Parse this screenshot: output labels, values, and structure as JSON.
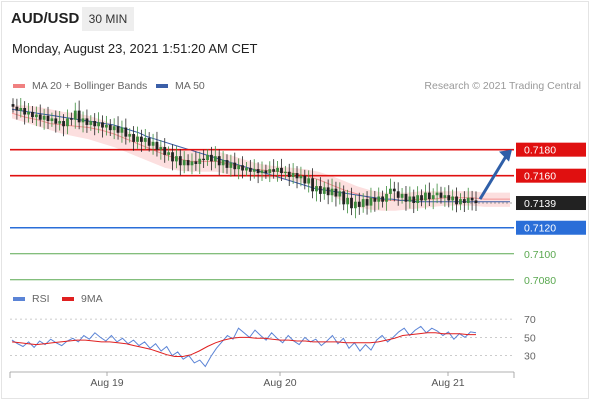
{
  "header": {
    "symbol": "AUD/USD",
    "timeframe": "30 MIN",
    "datetime": "Monday, August 23, 2021 1:51:20 AM CET"
  },
  "legend": {
    "bollinger_label": "MA 20 + Bollinger Bands",
    "ma50_label": "MA 50",
    "credit": "Research © 2021 Trading Central",
    "rsi_label": "RSI",
    "ma9_label": "9MA"
  },
  "colors": {
    "bollinger": "#f08080",
    "band_fill": "#fcdcdc",
    "ma50": "#3b5fa8",
    "resistance": "#e01010",
    "pivot": "#2a6ed8",
    "support": "#5aa850",
    "rsi": "#5b84d6",
    "ma9": "#e02020",
    "candle_up": "#3c8c3c",
    "candle_down": "#222222",
    "arrow": "#2f5fa8",
    "last_price": "#222222"
  },
  "chart_data": {
    "type": "candlestick",
    "price_axis": {
      "ylim": [
        0.7076,
        0.7222
      ]
    },
    "x_labels": [
      "Aug 19",
      "Aug 20",
      "Aug 21"
    ],
    "close_series": [
      0.7213,
      0.721,
      0.7212,
      0.7207,
      0.7209,
      0.7205,
      0.7207,
      0.7203,
      0.7206,
      0.7202,
      0.7204,
      0.72,
      0.7202,
      0.7198,
      0.7204,
      0.7203,
      0.721,
      0.7201,
      0.7204,
      0.7199,
      0.7202,
      0.7198,
      0.7201,
      0.7197,
      0.7199,
      0.7195,
      0.7198,
      0.7193,
      0.7197,
      0.719,
      0.7192,
      0.7186,
      0.719,
      0.7186,
      0.7189,
      0.7183,
      0.7186,
      0.718,
      0.7182,
      0.7176,
      0.7178,
      0.7171,
      0.7175,
      0.7168,
      0.7172,
      0.7168,
      0.7171,
      0.7169,
      0.7173,
      0.7172,
      0.7176,
      0.7171,
      0.7175,
      0.7168,
      0.7172,
      0.7166,
      0.717,
      0.7165,
      0.7168,
      0.7164,
      0.7166,
      0.7163,
      0.7165,
      0.7162,
      0.7164,
      0.7162,
      0.7165,
      0.7163,
      0.7166,
      0.7162,
      0.7163,
      0.7159,
      0.7162,
      0.7158,
      0.716,
      0.7154,
      0.7158,
      0.7148,
      0.7152,
      0.7146,
      0.7151,
      0.7145,
      0.715,
      0.7144,
      0.7148,
      0.7138,
      0.7143,
      0.7135,
      0.714,
      0.7136,
      0.7142,
      0.7137,
      0.7143,
      0.714,
      0.7144,
      0.714,
      0.7146,
      0.715,
      0.7148,
      0.7143,
      0.7146,
      0.714,
      0.7144,
      0.7139,
      0.7145,
      0.7141,
      0.7147,
      0.7142,
      0.7145,
      0.7147,
      0.7143,
      0.7145,
      0.7141,
      0.7144,
      0.7138,
      0.7142,
      0.7139,
      0.7143,
      0.7141,
      0.7139
    ],
    "ma50_series": [
      0.7211,
      0.721,
      0.7209,
      0.7208,
      0.7207,
      0.7206,
      0.7205,
      0.7204,
      0.7203,
      0.7202,
      0.7201,
      0.72,
      0.7199,
      0.7197,
      0.7195,
      0.7193,
      0.719,
      0.7188,
      0.7186,
      0.7184,
      0.7182,
      0.718,
      0.7178,
      0.7176,
      0.7174,
      0.7172,
      0.717,
      0.7168,
      0.7166,
      0.7164,
      0.7162,
      0.716,
      0.7158,
      0.7156,
      0.7154,
      0.7152,
      0.715,
      0.7149,
      0.7148,
      0.7147,
      0.7146,
      0.7145,
      0.7144,
      0.7143,
      0.7142,
      0.7142,
      0.7141,
      0.7141,
      0.714,
      0.714,
      0.714,
      0.714,
      0.714,
      0.714,
      0.714,
      0.714,
      0.714,
      0.714,
      0.714,
      0.714
    ],
    "bollinger": {
      "mid": [
        0.7208,
        0.7205,
        0.7203,
        0.72,
        0.7199,
        0.7198,
        0.7197,
        0.7195,
        0.7192,
        0.7188,
        0.7184,
        0.718,
        0.7176,
        0.7173,
        0.7171,
        0.7171,
        0.7171,
        0.7169,
        0.7167,
        0.7165,
        0.7164,
        0.7163,
        0.7162,
        0.716,
        0.7157,
        0.7153,
        0.7149,
        0.7146,
        0.7143,
        0.7141,
        0.7141,
        0.7141,
        0.7142,
        0.7142,
        0.7143,
        0.7143,
        0.7143,
        0.7142,
        0.7142,
        0.7142
      ],
      "upper": [
        0.7214,
        0.7214,
        0.7213,
        0.7211,
        0.7209,
        0.7208,
        0.7206,
        0.7203,
        0.7199,
        0.7194,
        0.719,
        0.7186,
        0.7182,
        0.718,
        0.7179,
        0.7179,
        0.7179,
        0.7176,
        0.7173,
        0.717,
        0.7168,
        0.7167,
        0.7166,
        0.7165,
        0.7163,
        0.716,
        0.7156,
        0.7152,
        0.7149,
        0.7147,
        0.7147,
        0.7147,
        0.7148,
        0.7148,
        0.7148,
        0.7148,
        0.7148,
        0.7147,
        0.7147,
        0.7147
      ],
      "lower": [
        0.7204,
        0.7201,
        0.7198,
        0.7195,
        0.7192,
        0.719,
        0.7188,
        0.7185,
        0.7182,
        0.7178,
        0.7174,
        0.717,
        0.7166,
        0.7164,
        0.7163,
        0.7163,
        0.7163,
        0.7161,
        0.716,
        0.7159,
        0.7158,
        0.7157,
        0.7156,
        0.7154,
        0.715,
        0.7145,
        0.714,
        0.7136,
        0.7134,
        0.7133,
        0.7133,
        0.7134,
        0.7135,
        0.7136,
        0.7137,
        0.7137,
        0.7137,
        0.7136,
        0.7136,
        0.7136
      ]
    },
    "levels": [
      {
        "value": "0.7180",
        "price": 0.718,
        "kind": "resistance"
      },
      {
        "value": "0.7160",
        "price": 0.716,
        "kind": "resistance"
      },
      {
        "value": "0.7139",
        "price": 0.7139,
        "kind": "last"
      },
      {
        "value": "0.7120",
        "price": 0.712,
        "kind": "pivot"
      },
      {
        "value": "0.7100",
        "price": 0.71,
        "kind": "support"
      },
      {
        "value": "0.7080",
        "price": 0.708,
        "kind": "support"
      }
    ],
    "arrow": {
      "from_price": 0.7142,
      "to_price": 0.718
    },
    "rsi": {
      "ylim": [
        12,
        80
      ],
      "ticks": [
        "70",
        "50",
        "30"
      ],
      "tick_values": [
        70,
        50,
        30
      ],
      "values": [
        47,
        43,
        40,
        45,
        39,
        46,
        42,
        48,
        44,
        41,
        46,
        49,
        45,
        52,
        48,
        55,
        50,
        46,
        52,
        45,
        49,
        43,
        47,
        41,
        45,
        38,
        43,
        35,
        40,
        30,
        34,
        26,
        30,
        22,
        25,
        18,
        29,
        38,
        45,
        52,
        48,
        60,
        55,
        50,
        58,
        52,
        47,
        55,
        49,
        44,
        52,
        46,
        42,
        50,
        45,
        48,
        41,
        46,
        52,
        43,
        49,
        38,
        44,
        35,
        42,
        36,
        47,
        52,
        45,
        50,
        56,
        60,
        52,
        58,
        62,
        55,
        60,
        57,
        52,
        56,
        48,
        54,
        50,
        56,
        55
      ],
      "ma9": [
        45,
        44,
        43,
        42,
        43,
        44,
        45,
        46,
        47,
        47,
        46,
        45,
        45,
        44,
        43,
        41,
        39,
        37,
        34,
        31,
        29,
        29,
        31,
        35,
        40,
        44,
        47,
        49,
        50,
        50,
        49,
        49,
        48,
        47,
        47,
        46,
        46,
        45,
        45,
        45,
        45,
        44,
        44,
        44,
        44,
        45,
        47,
        49,
        52,
        53,
        54,
        55,
        55,
        54,
        54,
        54,
        53,
        53
      ]
    }
  }
}
